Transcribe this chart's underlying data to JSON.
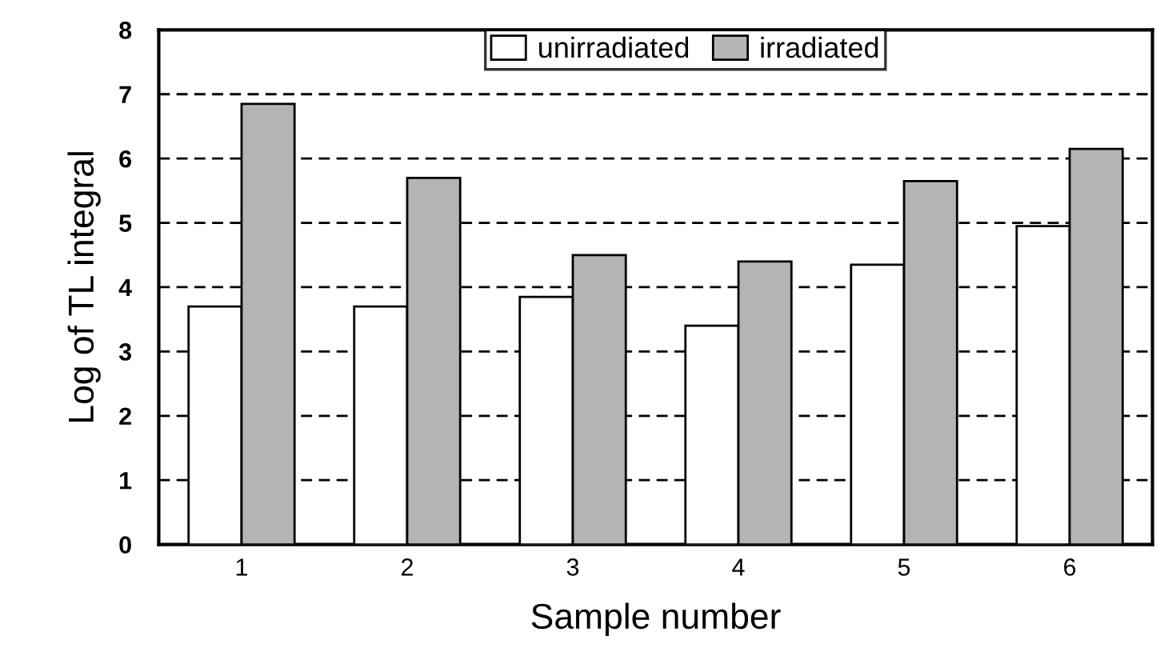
{
  "chart_data": {
    "type": "bar",
    "xlabel": "Sample number",
    "ylabel": "Log of TL integral",
    "categories": [
      "1",
      "2",
      "3",
      "4",
      "5",
      "6"
    ],
    "series": [
      {
        "name": "unirradiated",
        "color": "#ffffff",
        "values": [
          3.7,
          3.7,
          3.85,
          3.4,
          4.35,
          4.95
        ]
      },
      {
        "name": "irradiated",
        "color": "#b4b4b4",
        "values": [
          6.85,
          5.7,
          4.5,
          4.4,
          5.65,
          6.15
        ]
      }
    ],
    "ylim": [
      0,
      8
    ],
    "yticks": [
      0,
      1,
      2,
      3,
      4,
      5,
      6,
      7,
      8
    ],
    "grid": "y",
    "legend": "top"
  }
}
